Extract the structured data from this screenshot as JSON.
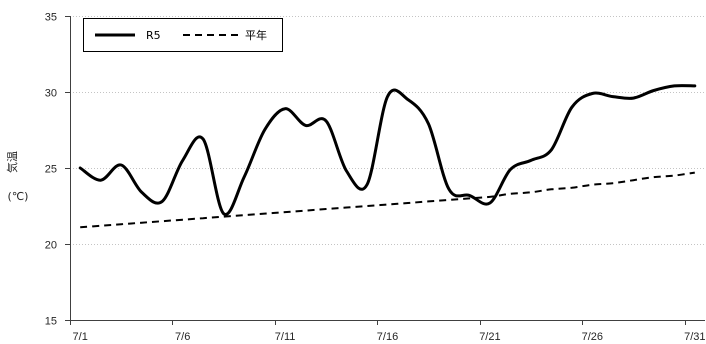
{
  "chart_data": {
    "type": "line",
    "ylabel": "気温",
    "ylabel_unit": "(℃)",
    "categories": [
      "7/1",
      "7/2",
      "7/3",
      "7/4",
      "7/5",
      "7/6",
      "7/7",
      "7/8",
      "7/9",
      "7/10",
      "7/11",
      "7/12",
      "7/13",
      "7/14",
      "7/15",
      "7/16",
      "7/17",
      "7/18",
      "7/19",
      "7/20",
      "7/21",
      "7/22",
      "7/23",
      "7/24",
      "7/25",
      "7/26",
      "7/27",
      "7/28",
      "7/29",
      "7/30",
      "7/31"
    ],
    "x_tick_labels": [
      "7/1",
      "7/6",
      "7/11",
      "7/16",
      "7/21",
      "7/26",
      "7/31"
    ],
    "ylim": [
      15,
      35
    ],
    "yticks": [
      15,
      20,
      25,
      30,
      35
    ],
    "grid": true,
    "smooth": true,
    "legend": {
      "position": "top-left",
      "border": true
    },
    "series": [
      {
        "name": "R5",
        "line_style": "solid",
        "color": "#000000",
        "values": [
          25.0,
          24.2,
          25.2,
          23.4,
          22.8,
          25.5,
          26.9,
          22.0,
          24.4,
          27.5,
          28.9,
          27.8,
          28.1,
          24.8,
          23.9,
          29.7,
          29.5,
          27.9,
          23.6,
          23.2,
          22.7,
          24.9,
          25.5,
          26.2,
          29.0,
          29.9,
          29.7,
          29.6,
          30.1,
          30.4,
          30.4
        ]
      },
      {
        "name": "平年",
        "line_style": "dashed",
        "color": "#000000",
        "values": [
          21.1,
          21.2,
          21.3,
          21.4,
          21.5,
          21.6,
          21.7,
          21.8,
          21.9,
          22.0,
          22.1,
          22.2,
          22.3,
          22.4,
          22.5,
          22.6,
          22.7,
          22.8,
          22.9,
          23.0,
          23.1,
          23.3,
          23.4,
          23.6,
          23.7,
          23.9,
          24.0,
          24.2,
          24.4,
          24.5,
          24.7
        ]
      }
    ]
  }
}
